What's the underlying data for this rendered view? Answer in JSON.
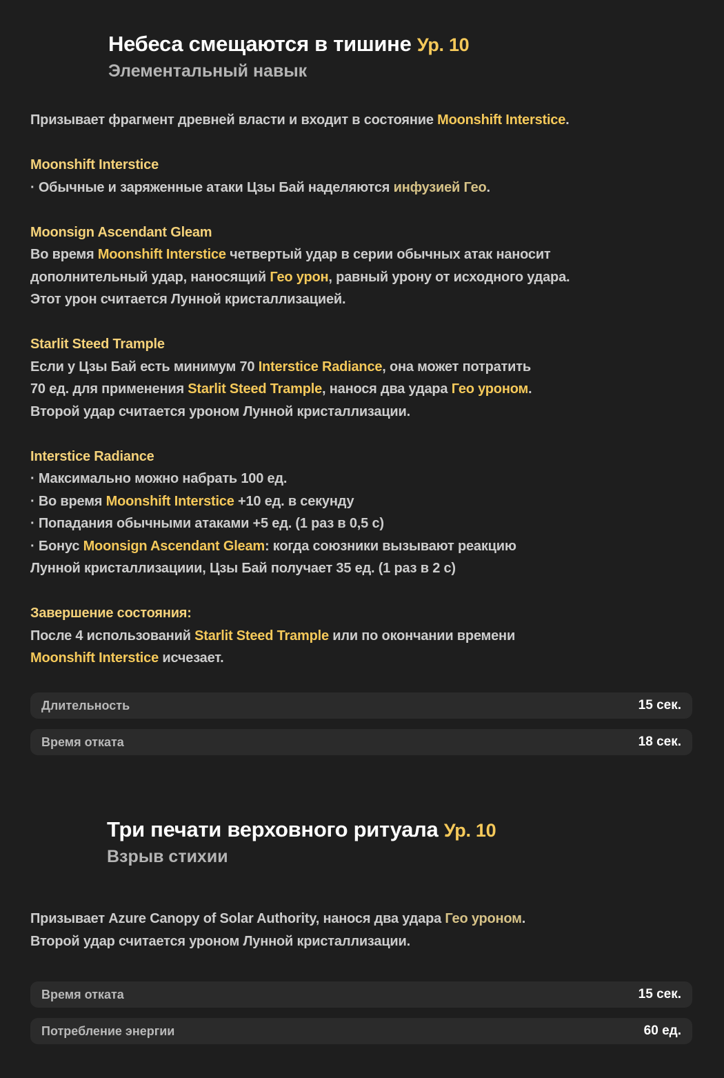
{
  "colors": {
    "background": "#1e1e1e",
    "text": "#cdcdcd",
    "accent_gold": "#f5c95a",
    "muted_gold": "#d6c287",
    "stat_row": "#2b2b2b"
  },
  "skill": {
    "title": "Небеса смещаются в тишине",
    "level": "Ур. 10",
    "type": "Элементальный навык",
    "lines": [
      [
        {
          "t": "Призывает фрагмент древней власти и входит в состояние "
        },
        {
          "t": "Moonshift Interstice",
          "c": "gold"
        },
        {
          "t": "."
        }
      ],
      null,
      [
        {
          "t": "Moonshift Interstice",
          "c": "head"
        }
      ],
      [
        {
          "t": "· Обычные и заряженные атаки Цзы Бай наделяются "
        },
        {
          "t": "инфузией Гео",
          "c": "muted"
        },
        {
          "t": "."
        }
      ],
      null,
      [
        {
          "t": "Moonsign Ascendant Gleam",
          "c": "head"
        }
      ],
      [
        {
          "t": "Во время "
        },
        {
          "t": "Moonshift Interstice",
          "c": "gold"
        },
        {
          "t": " четвертый удар в серии обычных атак наносит"
        }
      ],
      [
        {
          "t": "дополнительный удар, наносящий "
        },
        {
          "t": "Гео урон",
          "c": "gold"
        },
        {
          "t": ", равный урону от исходного удара."
        }
      ],
      [
        {
          "t": "Этот урон считается Лунной кристаллизацией."
        }
      ],
      null,
      [
        {
          "t": "Starlit Steed Trample",
          "c": "head"
        }
      ],
      [
        {
          "t": "Если у Цзы Бай есть минимум 70 "
        },
        {
          "t": "Interstice Radiance",
          "c": "gold"
        },
        {
          "t": ", она может потратить"
        }
      ],
      [
        {
          "t": "70 ед. для применения "
        },
        {
          "t": "Starlit Steed Trample",
          "c": "gold"
        },
        {
          "t": ", нанося два удара "
        },
        {
          "t": "Гео уроном",
          "c": "gold"
        },
        {
          "t": "."
        }
      ],
      [
        {
          "t": "Второй удар считается уроном Лунной кристаллизации."
        }
      ],
      null,
      [
        {
          "t": "Interstice Radiance",
          "c": "head"
        }
      ],
      [
        {
          "t": "· Максимально можно набрать 100 ед."
        }
      ],
      [
        {
          "t": "· Во время "
        },
        {
          "t": "Moonshift Interstice",
          "c": "gold"
        },
        {
          "t": " +10 ед. в секунду"
        }
      ],
      [
        {
          "t": "· Попадания обычными атаками +5 ед. (1 раз в 0,5 с)"
        }
      ],
      [
        {
          "t": "· Бонус "
        },
        {
          "t": "Moonsign Ascendant Gleam",
          "c": "gold"
        },
        {
          "t": ": когда союзники вызывают реакцию"
        }
      ],
      [
        {
          "t": "Лунной кристаллизациии, Цзы Бай получает 35 ед. (1 раз в 2 с)"
        }
      ],
      null,
      [
        {
          "t": "Завершение состояния:",
          "c": "head"
        }
      ],
      [
        {
          "t": "После 4 использований "
        },
        {
          "t": "Starlit Steed Trample",
          "c": "gold"
        },
        {
          "t": " или по окончании времени"
        }
      ],
      [
        {
          "t": "Moonshift Interstice",
          "c": "gold"
        },
        {
          "t": " исчезает."
        }
      ]
    ],
    "stats": [
      {
        "label": "Длительность",
        "value": "15 сек."
      },
      {
        "label": "Время отката",
        "value": "18 сек."
      }
    ]
  },
  "burst": {
    "title": "Три печати верховного ритуала",
    "level": "Ур. 10",
    "type": "Взрыв стихии",
    "lines": [
      [
        {
          "t": "Призывает Azure Canopy of Solar Authority, нанося два удара "
        },
        {
          "t": "Гео уроном",
          "c": "muted"
        },
        {
          "t": "."
        }
      ],
      [
        {
          "t": "Второй удар считается уроном Лунной кристаллизации."
        }
      ]
    ],
    "stats": [
      {
        "label": "Время отката",
        "value": "15 сек."
      },
      {
        "label": "Потребление энергии",
        "value": "60 ед."
      }
    ]
  }
}
